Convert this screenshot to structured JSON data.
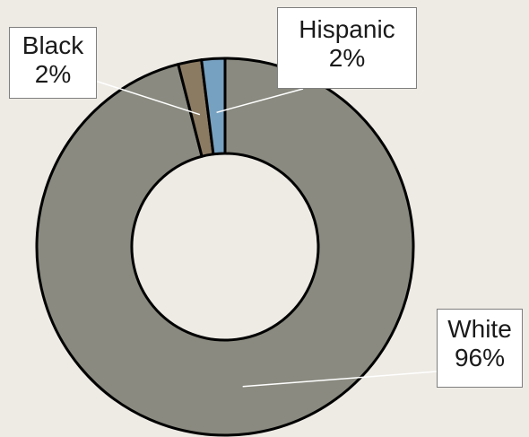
{
  "chart_data": {
    "type": "pie",
    "variant": "donut",
    "title": "",
    "slices": [
      {
        "label": "White",
        "value": 96,
        "pct_label": "96%",
        "color": "#8a8a80"
      },
      {
        "label": "Black",
        "value": 2,
        "pct_label": "2%",
        "color": "#8b7b63"
      },
      {
        "label": "Hispanic",
        "value": 2,
        "pct_label": "2%",
        "color": "#77a1c0"
      }
    ],
    "start_angle_deg": 0,
    "direction": "counterclockwise",
    "legend": "none",
    "data_labels": "callouts"
  },
  "colors": {
    "background": "#eeebe5",
    "outline": "#000000",
    "leader_line": "#ffffff"
  }
}
